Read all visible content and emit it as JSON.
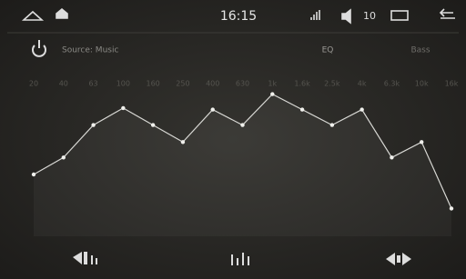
{
  "status_bar": {
    "time": "16:15",
    "volume": "10"
  },
  "toolbar": {
    "source": "Source: Music",
    "eq": "EQ",
    "bass": "Bass"
  },
  "eq": {
    "bands": [
      "20",
      "40",
      "63",
      "100",
      "160",
      "250",
      "400",
      "630",
      "1k",
      "1.6k",
      "2.5k",
      "4k",
      "6.3k",
      "10k",
      "16k"
    ],
    "levels": [
      40,
      51,
      72,
      83,
      72,
      61,
      82,
      72,
      92,
      82,
      72,
      82,
      51,
      61,
      18
    ]
  }
}
